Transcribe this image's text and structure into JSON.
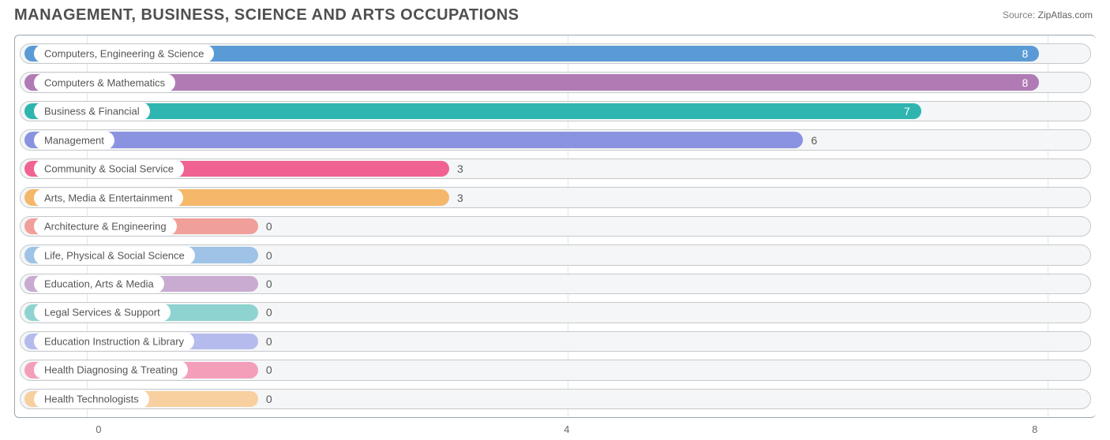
{
  "chart": {
    "type": "bar-horizontal",
    "title": "MANAGEMENT, BUSINESS, SCIENCE AND ARTS OCCUPATIONS",
    "title_fontsize": 20,
    "title_color": "#4f4f4f",
    "source_label": "Source:",
    "source_value": "ZipAtlas.com",
    "background_color": "#ffffff",
    "track_border_color": "#c6c9cc",
    "track_fill_color": "#f4f6f7",
    "plot_border_color": "#9aa7b0",
    "grid_color": "#e4e6e8",
    "axis_label_color": "#6a6a6a",
    "category_label_color": "#555555",
    "value_label_color": "#5a5a5a",
    "value_label_inside_color": "#ffffff",
    "label_fontsize": 13,
    "value_fontsize": 14,
    "x_min": -0.6,
    "x_max": 8.4,
    "x_ticks": [
      0,
      4,
      8
    ],
    "zero_bar_pct": 22,
    "categories": [
      {
        "label": "Computers, Engineering & Science",
        "value": 8,
        "color": "#5b9bd5"
      },
      {
        "label": "Computers & Mathematics",
        "value": 8,
        "color": "#b07bb5"
      },
      {
        "label": "Business & Financial",
        "value": 7,
        "color": "#2fb5b0"
      },
      {
        "label": "Management",
        "value": 6,
        "color": "#8a93e0"
      },
      {
        "label": "Community & Social Service",
        "value": 3,
        "color": "#f06292"
      },
      {
        "label": "Arts, Media & Entertainment",
        "value": 3,
        "color": "#f5b76a"
      },
      {
        "label": "Architecture & Engineering",
        "value": 0,
        "color": "#f19f9a"
      },
      {
        "label": "Life, Physical & Social Science",
        "value": 0,
        "color": "#9ec3e6"
      },
      {
        "label": "Education, Arts & Media",
        "value": 0,
        "color": "#c9abd1"
      },
      {
        "label": "Legal Services & Support",
        "value": 0,
        "color": "#8fd3d0"
      },
      {
        "label": "Education Instruction & Library",
        "value": 0,
        "color": "#b5bbec"
      },
      {
        "label": "Health Diagnosing & Treating",
        "value": 0,
        "color": "#f49fb9"
      },
      {
        "label": "Health Technologists",
        "value": 0,
        "color": "#f8cf9e"
      }
    ]
  }
}
